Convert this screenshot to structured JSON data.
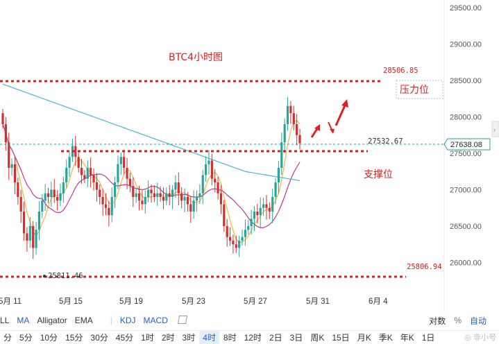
{
  "chart": {
    "title": "BTC4小时图",
    "resistance_label": "压力位",
    "support_label": "支撑位",
    "current_price": "27638.08",
    "levels": {
      "resistance": "28506.85",
      "support": "27532.67",
      "low_right": "25806.94",
      "low_left": "25811.46"
    },
    "colors": {
      "up": "#26a69a",
      "down": "#d32f2f",
      "annotation": "#d32020",
      "ma_yellow": "#f0b73a",
      "ma_pink": "#c2368f",
      "ma_blue": "#4ab6d6",
      "ma_purple": "#a64bb0"
    }
  },
  "chart_data": {
    "type": "candlestick",
    "y_axis_ticks": [
      "29500.00",
      "29000.00",
      "28500.00",
      "28000.00",
      "27500.00",
      "27000.00",
      "26500.00",
      "26000.00"
    ],
    "ylim": [
      25700,
      29550
    ],
    "x_axis_ticks": [
      "5月 11",
      "5月 15",
      "5月 19",
      "5月 23",
      "5月 27",
      "5月 31",
      "6月 4"
    ],
    "annotated_levels": [
      28506.85,
      27532.67,
      25806.94,
      25811.46
    ],
    "last_price": 27638.08
  },
  "indicators": {
    "left": [
      "LL",
      "MA",
      "Alligator",
      "EMA",
      "KDJ",
      "MACD"
    ],
    "active": [
      "MA",
      "KDJ",
      "MACD"
    ],
    "right": [
      "对数",
      "%",
      "自动"
    ]
  },
  "intervals": [
    "分",
    "5分",
    "10分",
    "15分",
    "30分",
    "45分",
    "1时",
    "2时",
    "3时",
    "4时",
    "8时",
    "12时",
    "2日",
    "3日",
    "周K",
    "15日",
    "月K",
    "季K",
    "年K",
    "1日"
  ],
  "selected_interval": "4时",
  "watermark": "◎ 非小号"
}
